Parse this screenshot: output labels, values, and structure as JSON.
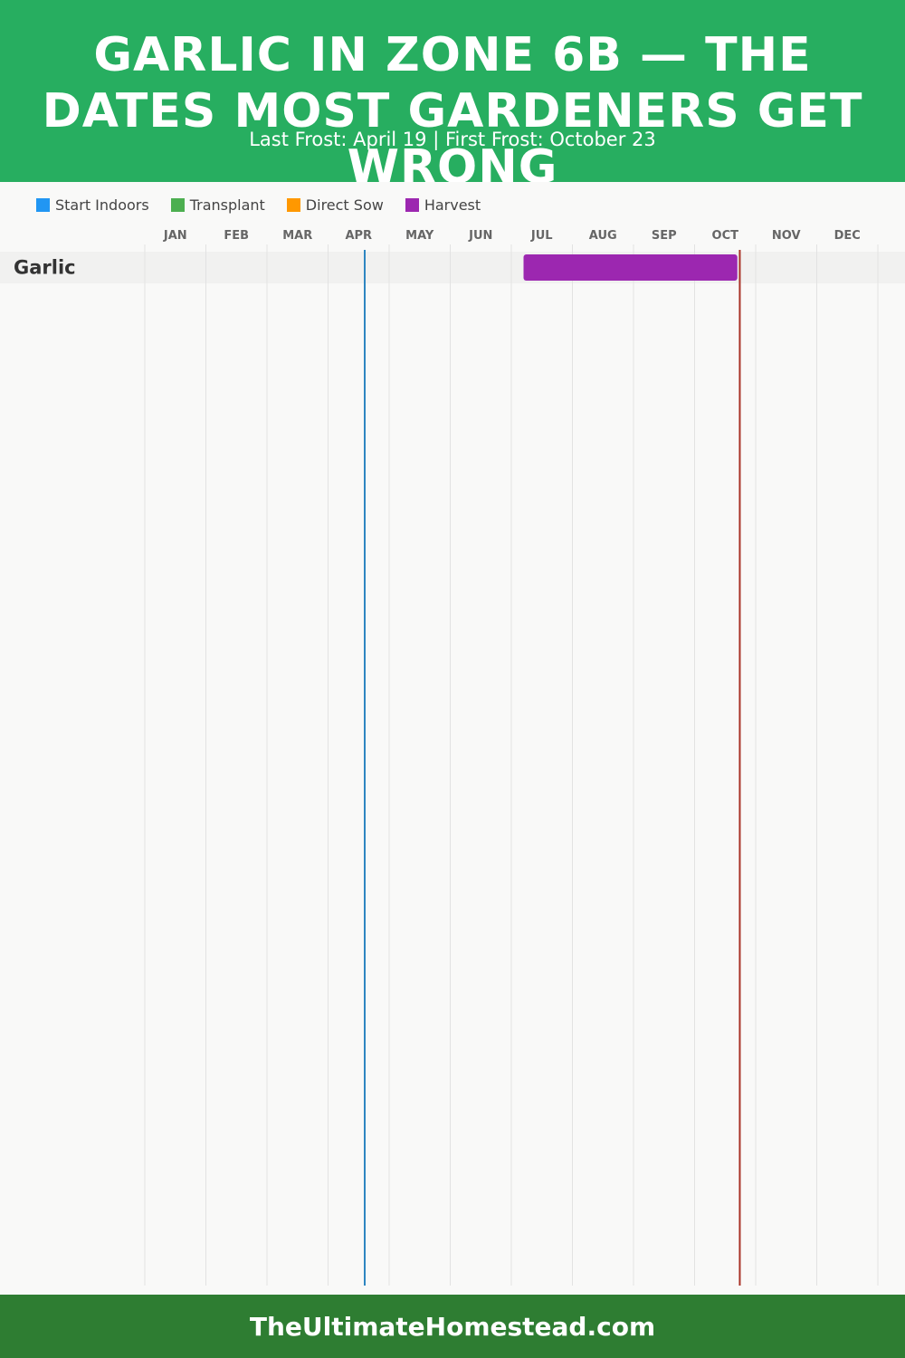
{
  "header": {
    "title": "GARLIC IN ZONE 6B — THE DATES MOST GARDENERS GET WRONG",
    "subtitle": "Last Frost: April 19 | First Frost: October 23",
    "bg_color": "#27ae60"
  },
  "legend": [
    {
      "label": "Start Indoors",
      "color": "#2196f3"
    },
    {
      "label": "Transplant",
      "color": "#4caf50"
    },
    {
      "label": "Direct Sow",
      "color": "#ff9800"
    },
    {
      "label": "Harvest",
      "color": "#9c27b0"
    }
  ],
  "footer": {
    "text": "TheUltimateHomestead.com",
    "bg_color": "#2e7d32"
  },
  "chart_data": {
    "type": "gantt",
    "months": [
      "JAN",
      "FEB",
      "MAR",
      "APR",
      "MAY",
      "JUN",
      "JUL",
      "AUG",
      "SEP",
      "OCT",
      "NOV",
      "DEC"
    ],
    "crops": [
      {
        "name": "Garlic",
        "bars": [
          {
            "activity": "Harvest",
            "start": "Jul 15",
            "end": "Nov 1",
            "start_month": 7.2,
            "end_month": 10.7,
            "color": "#9c27b0"
          }
        ]
      }
    ],
    "frost_lines": [
      {
        "name": "Last Frost",
        "date": "April 19",
        "month_pos": 4.6,
        "color": "#2e86c1"
      },
      {
        "name": "First Frost",
        "date": "October 23",
        "month_pos": 10.74,
        "color": "#a93226"
      }
    ],
    "grid": true
  }
}
